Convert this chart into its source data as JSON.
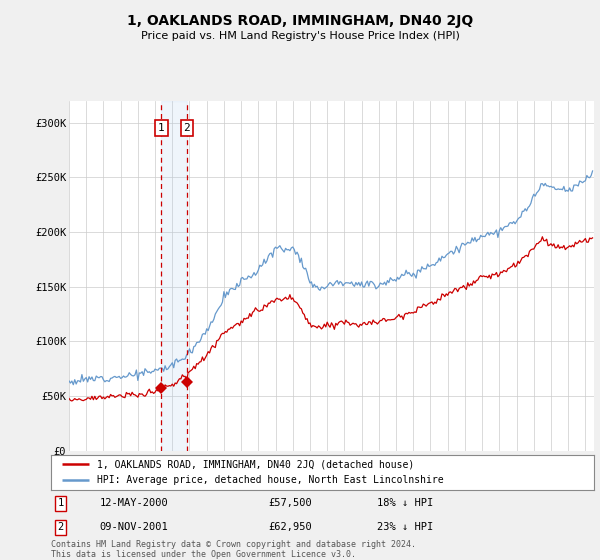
{
  "title": "1, OAKLANDS ROAD, IMMINGHAM, DN40 2JQ",
  "subtitle": "Price paid vs. HM Land Registry's House Price Index (HPI)",
  "legend_label_red": "1, OAKLANDS ROAD, IMMINGHAM, DN40 2JQ (detached house)",
  "legend_label_blue": "HPI: Average price, detached house, North East Lincolnshire",
  "footer": "Contains HM Land Registry data © Crown copyright and database right 2024.\nThis data is licensed under the Open Government Licence v3.0.",
  "sale1_date": "12-MAY-2000",
  "sale1_price": "£57,500",
  "sale1_hpi": "18% ↓ HPI",
  "sale1_year": 2000.37,
  "sale1_value": 57500,
  "sale2_date": "09-NOV-2001",
  "sale2_price": "£62,950",
  "sale2_hpi": "23% ↓ HPI",
  "sale2_year": 2001.85,
  "sale2_value": 62950,
  "ylim": [
    0,
    320000
  ],
  "yticks": [
    0,
    50000,
    100000,
    150000,
    200000,
    250000,
    300000
  ],
  "ytick_labels": [
    "£0",
    "£50K",
    "£100K",
    "£150K",
    "£200K",
    "£250K",
    "£300K"
  ],
  "xlim_start": 1995,
  "xlim_end": 2025.5,
  "bg_color": "#f0f0f0",
  "plot_bg_color": "#ffffff",
  "red_color": "#cc0000",
  "blue_color": "#6699cc",
  "hpi_key_years": [
    1995,
    1996,
    1997,
    1998,
    1999,
    2000,
    2001,
    2002,
    2003,
    2004,
    2005,
    2006,
    2007,
    2008,
    2008.5,
    2009,
    2009.5,
    2010,
    2011,
    2012,
    2013,
    2014,
    2015,
    2016,
    2017,
    2018,
    2019,
    2020,
    2021,
    2022,
    2022.5,
    2023,
    2024,
    2025,
    2025.5
  ],
  "hpi_key_values": [
    63000,
    65000,
    67000,
    68000,
    70000,
    73000,
    78000,
    90000,
    110000,
    140000,
    155000,
    165000,
    185000,
    185000,
    175000,
    155000,
    148000,
    152000,
    155000,
    152000,
    152000,
    158000,
    162000,
    170000,
    180000,
    188000,
    197000,
    200000,
    210000,
    230000,
    245000,
    240000,
    237000,
    248000,
    255000
  ],
  "red_key_years": [
    1995,
    1996,
    1997,
    1998,
    1999,
    2000,
    2001,
    2002,
    2003,
    2004,
    2005,
    2006,
    2007,
    2008,
    2008.5,
    2009,
    2009.5,
    2010,
    2011,
    2012,
    2013,
    2014,
    2015,
    2016,
    2017,
    2018,
    2019,
    2020,
    2021,
    2022,
    2022.5,
    2023,
    2024,
    2025,
    2025.5
  ],
  "red_key_values": [
    47000,
    48000,
    49000,
    50000,
    51000,
    55000,
    60000,
    72000,
    88000,
    108000,
    118000,
    128000,
    138000,
    140000,
    128000,
    115000,
    112000,
    115000,
    118000,
    115000,
    118000,
    122000,
    128000,
    135000,
    143000,
    150000,
    158000,
    162000,
    170000,
    185000,
    195000,
    188000,
    185000,
    192000,
    195000
  ]
}
